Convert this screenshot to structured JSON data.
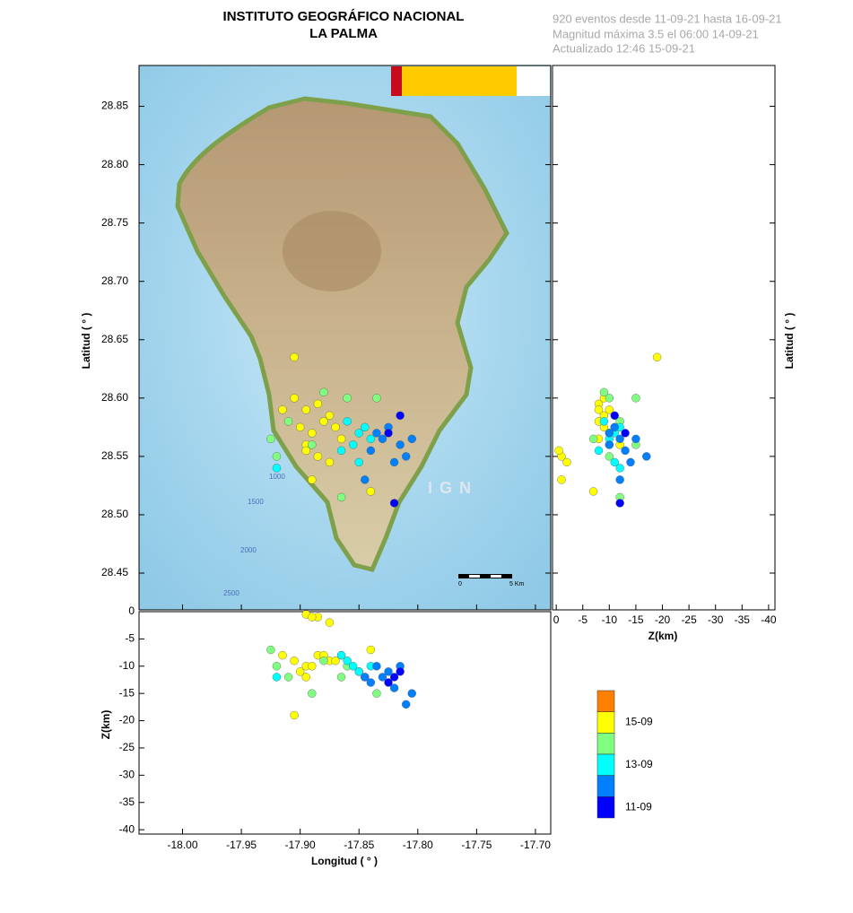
{
  "header": {
    "title": "INSTITUTO GEOGRÁFICO NACIONAL",
    "subtitle": "LA PALMA",
    "info": [
      "920 eventos desde 11-09-21 hasta 16-09-21",
      "Magnitud máxima 3.5 el 06:00 14-09-21",
      "Actualizado   12:46  15-09-21"
    ]
  },
  "chart_data": {
    "type": "scatter",
    "xlabel": "Longitud ( ° )",
    "ylabel": "Latitud ( ° )",
    "zlabel": "Z(km)",
    "zlabel_side": "Z(km)",
    "ylabel_side": "Latitud ( ° )",
    "xlim": [
      -18.037,
      -17.687
    ],
    "xticks": [
      {
        "value": -18.0,
        "label": "-18.00"
      },
      -17.95,
      {
        "value": -17.9,
        "label": "-17.90"
      },
      -17.85,
      {
        "value": -17.8,
        "label": "-17.80"
      },
      -17.75,
      {
        "value": -17.7,
        "label": "-17.70"
      }
    ],
    "ylim": [
      28.4185,
      28.885
    ],
    "yticks": [
      28.45,
      {
        "value": 28.5,
        "label": "28.50"
      },
      28.55,
      {
        "value": 28.6,
        "label": "28.60"
      },
      28.65,
      {
        "value": 28.7,
        "label": "28.70"
      },
      28.75,
      {
        "value": 28.8,
        "label": "28.80"
      },
      28.85
    ],
    "zlim": [
      -40.8,
      0
    ],
    "zlim_side": [
      0.7,
      -41.2
    ],
    "zticks": [
      0,
      -5,
      -10,
      -15,
      -20,
      -25,
      -30,
      -35,
      -40
    ],
    "series": [
      {
        "color": "#ffff00",
        "lon": [
          -17.905,
          -17.895,
          -17.885,
          -17.875,
          -17.9,
          -17.89,
          -17.88,
          -17.87,
          -17.915,
          -17.895,
          -17.885,
          -17.895,
          -17.875,
          -17.865,
          -17.905,
          -17.89,
          -17.84
        ],
        "lat": [
          28.6,
          28.59,
          28.595,
          28.585,
          28.575,
          28.57,
          28.58,
          28.575,
          28.59,
          28.56,
          28.55,
          28.555,
          28.545,
          28.565,
          28.635,
          28.53,
          28.52
        ],
        "depth": [
          -9,
          -10,
          -8,
          -9,
          -11,
          -10,
          -8,
          -9,
          -8,
          -12,
          -1,
          -0.5,
          -2,
          -8,
          -19,
          -1,
          -7
        ]
      },
      {
        "color": "#80ff80",
        "lon": [
          -17.925,
          -17.91,
          -17.88,
          -17.86,
          -17.89,
          -17.92,
          -17.865,
          -17.835
        ],
        "lat": [
          28.565,
          28.58,
          28.605,
          28.6,
          28.56,
          28.55,
          28.515,
          28.6
        ],
        "depth": [
          -7,
          -12,
          -9,
          -10,
          -15,
          -10,
          -12,
          -15
        ]
      },
      {
        "color": "#00ffff",
        "lon": [
          -17.86,
          -17.85,
          -17.855,
          -17.845,
          -17.865,
          -17.84,
          -17.85,
          -17.92
        ],
        "lat": [
          28.58,
          28.57,
          28.56,
          28.575,
          28.555,
          28.565,
          28.545,
          28.54
        ],
        "depth": [
          -9,
          -11,
          -10,
          -12,
          -8,
          -10,
          -11,
          -12
        ]
      },
      {
        "color": "#0080ff",
        "lon": [
          -17.835,
          -17.83,
          -17.825,
          -17.84,
          -17.815,
          -17.805,
          -17.81,
          -17.845,
          -17.82
        ],
        "lat": [
          28.57,
          28.565,
          28.575,
          28.555,
          28.56,
          28.565,
          28.55,
          28.53,
          28.545
        ],
        "depth": [
          -10,
          -12,
          -11,
          -13,
          -10,
          -15,
          -17,
          -12,
          -14
        ]
      },
      {
        "color": "#0000ff",
        "lon": [
          -17.815,
          -17.825,
          -17.82
        ],
        "lat": [
          28.585,
          28.57,
          28.51
        ],
        "depth": [
          -11,
          -13,
          -12
        ]
      }
    ],
    "colorbar": {
      "colors": [
        "#ff8000",
        "#ffff00",
        "#80ff80",
        "#00ffff",
        "#0080ff",
        "#0000ff"
      ],
      "labels": [
        null,
        "15-09",
        null,
        "13-09",
        null,
        "11-09"
      ]
    }
  },
  "map": {
    "watermark": "IGN",
    "contours": [
      "1000",
      "1500",
      "2000",
      "2500"
    ],
    "scale": [
      "0",
      "5 Km"
    ]
  }
}
